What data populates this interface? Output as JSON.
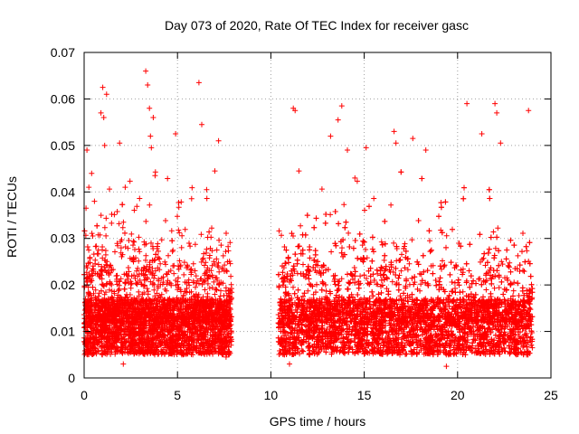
{
  "chart_data": {
    "type": "scatter",
    "title": "Day 073 of 2020, Rate Of TEC Index for receiver gasc",
    "xlabel": "GPS time / hours",
    "ylabel": "ROTI / TECUs",
    "xlim": [
      0,
      25
    ],
    "ylim": [
      0,
      0.07
    ],
    "xticks": [
      0,
      5,
      10,
      15,
      20,
      25
    ],
    "yticks": [
      0,
      0.01,
      0.02,
      0.03,
      0.04,
      0.05,
      0.06,
      0.07
    ],
    "xtick_labels": [
      "0",
      "5",
      "10",
      "15",
      "20",
      "25"
    ],
    "ytick_labels": [
      "0",
      "0.01",
      "0.02",
      "0.03",
      "0.04",
      "0.05",
      "0.06",
      "0.07"
    ],
    "grid": true,
    "marker": "+",
    "color": "#ff0000",
    "segments": [
      {
        "t_start": 0.0,
        "t_end": 7.9,
        "density": 420
      },
      {
        "t_start": 10.4,
        "t_end": 24.0,
        "density": 420
      }
    ],
    "series": [
      {
        "name": "gasc",
        "sample_points": [
          [
            0.1,
            0.0365
          ],
          [
            0.15,
            0.049
          ],
          [
            0.25,
            0.041
          ],
          [
            0.4,
            0.044
          ],
          [
            0.55,
            0.038
          ],
          [
            0.9,
            0.057
          ],
          [
            1.0,
            0.0625
          ],
          [
            1.05,
            0.056
          ],
          [
            1.1,
            0.05
          ],
          [
            1.2,
            0.061
          ],
          [
            1.9,
            0.0505
          ],
          [
            2.2,
            0.041
          ],
          [
            3.3,
            0.066
          ],
          [
            3.4,
            0.063
          ],
          [
            3.5,
            0.058
          ],
          [
            3.55,
            0.052
          ],
          [
            3.6,
            0.0495
          ],
          [
            3.7,
            0.056
          ],
          [
            3.8,
            0.0435
          ],
          [
            4.9,
            0.0525
          ],
          [
            6.15,
            0.0635
          ],
          [
            6.3,
            0.0545
          ],
          [
            7.0,
            0.0445
          ],
          [
            7.2,
            0.051
          ],
          [
            7.4,
            0.0075
          ],
          [
            7.5,
            0.0065
          ],
          [
            7.6,
            0.0045
          ],
          [
            11.2,
            0.058
          ],
          [
            11.3,
            0.0575
          ],
          [
            11.5,
            0.0445
          ],
          [
            13.2,
            0.052
          ],
          [
            13.6,
            0.0555
          ],
          [
            13.8,
            0.0585
          ],
          [
            14.1,
            0.049
          ],
          [
            14.5,
            0.043
          ],
          [
            15.1,
            0.0495
          ],
          [
            16.6,
            0.053
          ],
          [
            16.7,
            0.0505
          ],
          [
            17.6,
            0.0515
          ],
          [
            18.3,
            0.049
          ],
          [
            20.5,
            0.059
          ],
          [
            21.3,
            0.0525
          ],
          [
            22.0,
            0.059
          ],
          [
            22.1,
            0.057
          ],
          [
            22.3,
            0.0505
          ],
          [
            23.8,
            0.0575
          ],
          [
            24.0,
            0.0065
          ],
          [
            19.4,
            0.0025
          ],
          [
            11.0,
            0.003
          ],
          [
            2.1,
            0.003
          ]
        ]
      }
    ]
  }
}
